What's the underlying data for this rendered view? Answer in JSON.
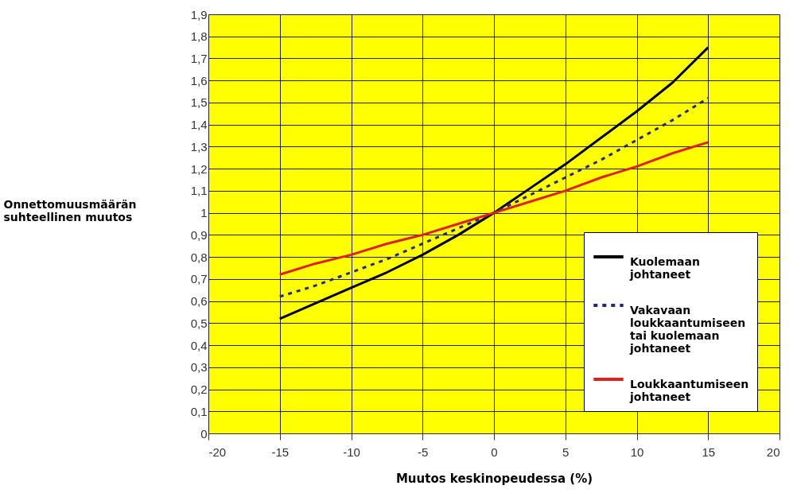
{
  "chart_data": {
    "type": "line",
    "xlabel": "Muutos keskinopeudessa (%)",
    "ylabel": "Onnettomuusmäärän suhteellinen muutos",
    "x": [
      -15,
      -12.5,
      -10,
      -7.5,
      -5,
      -2.5,
      0,
      2.5,
      5,
      7.5,
      10,
      12.5,
      15
    ],
    "series": [
      {
        "name": "Kuolemaan johtaneet",
        "color": "#000000",
        "line_style": "solid",
        "values": [
          0.52,
          0.59,
          0.66,
          0.73,
          0.81,
          0.9,
          1.0,
          1.11,
          1.22,
          1.34,
          1.46,
          1.59,
          1.75
        ]
      },
      {
        "name": "Vakavaan loukkaantumiseen tai kuolemaan johtaneet",
        "color": "#1f2a80",
        "line_style": "dotted",
        "values": [
          0.62,
          0.67,
          0.73,
          0.79,
          0.86,
          0.93,
          1.0,
          1.08,
          1.16,
          1.24,
          1.33,
          1.42,
          1.52
        ]
      },
      {
        "name": "Loukkaantumiseen johtaneet",
        "color": "#e0201b",
        "line_style": "solid",
        "values": [
          0.72,
          0.77,
          0.81,
          0.86,
          0.9,
          0.95,
          1.0,
          1.05,
          1.1,
          1.16,
          1.21,
          1.27,
          1.32
        ]
      }
    ],
    "xlim": [
      -20,
      20
    ],
    "xticks": [
      -20,
      -15,
      -10,
      -5,
      0,
      5,
      10,
      15,
      20
    ],
    "ylim": [
      0,
      1.9
    ],
    "yticks": [
      0,
      {
        "value": 0.1,
        "label": "0,1"
      },
      {
        "value": 0.2,
        "label": "0,2"
      },
      {
        "value": 0.3,
        "label": "0,3"
      },
      {
        "value": 0.4,
        "label": "0,4"
      },
      {
        "value": 0.5,
        "label": "0,5"
      },
      {
        "value": 0.6,
        "label": "0,6"
      },
      {
        "value": 0.7,
        "label": "0,7"
      },
      {
        "value": 0.8,
        "label": "0,8"
      },
      {
        "value": 0.9,
        "label": "0,9"
      },
      1,
      {
        "value": 1.1,
        "label": "1,1"
      },
      {
        "value": 1.2,
        "label": "1,2"
      },
      {
        "value": 1.3,
        "label": "1,3"
      },
      {
        "value": 1.4,
        "label": "1,4"
      },
      {
        "value": 1.5,
        "label": "1,5"
      },
      {
        "value": 1.6,
        "label": "1,6"
      },
      {
        "value": 1.7,
        "label": "1,7"
      },
      {
        "value": 1.8,
        "label": "1,8"
      },
      {
        "value": 1.9,
        "label": "1,9"
      }
    ],
    "grid": true,
    "legend": "bottom right"
  }
}
